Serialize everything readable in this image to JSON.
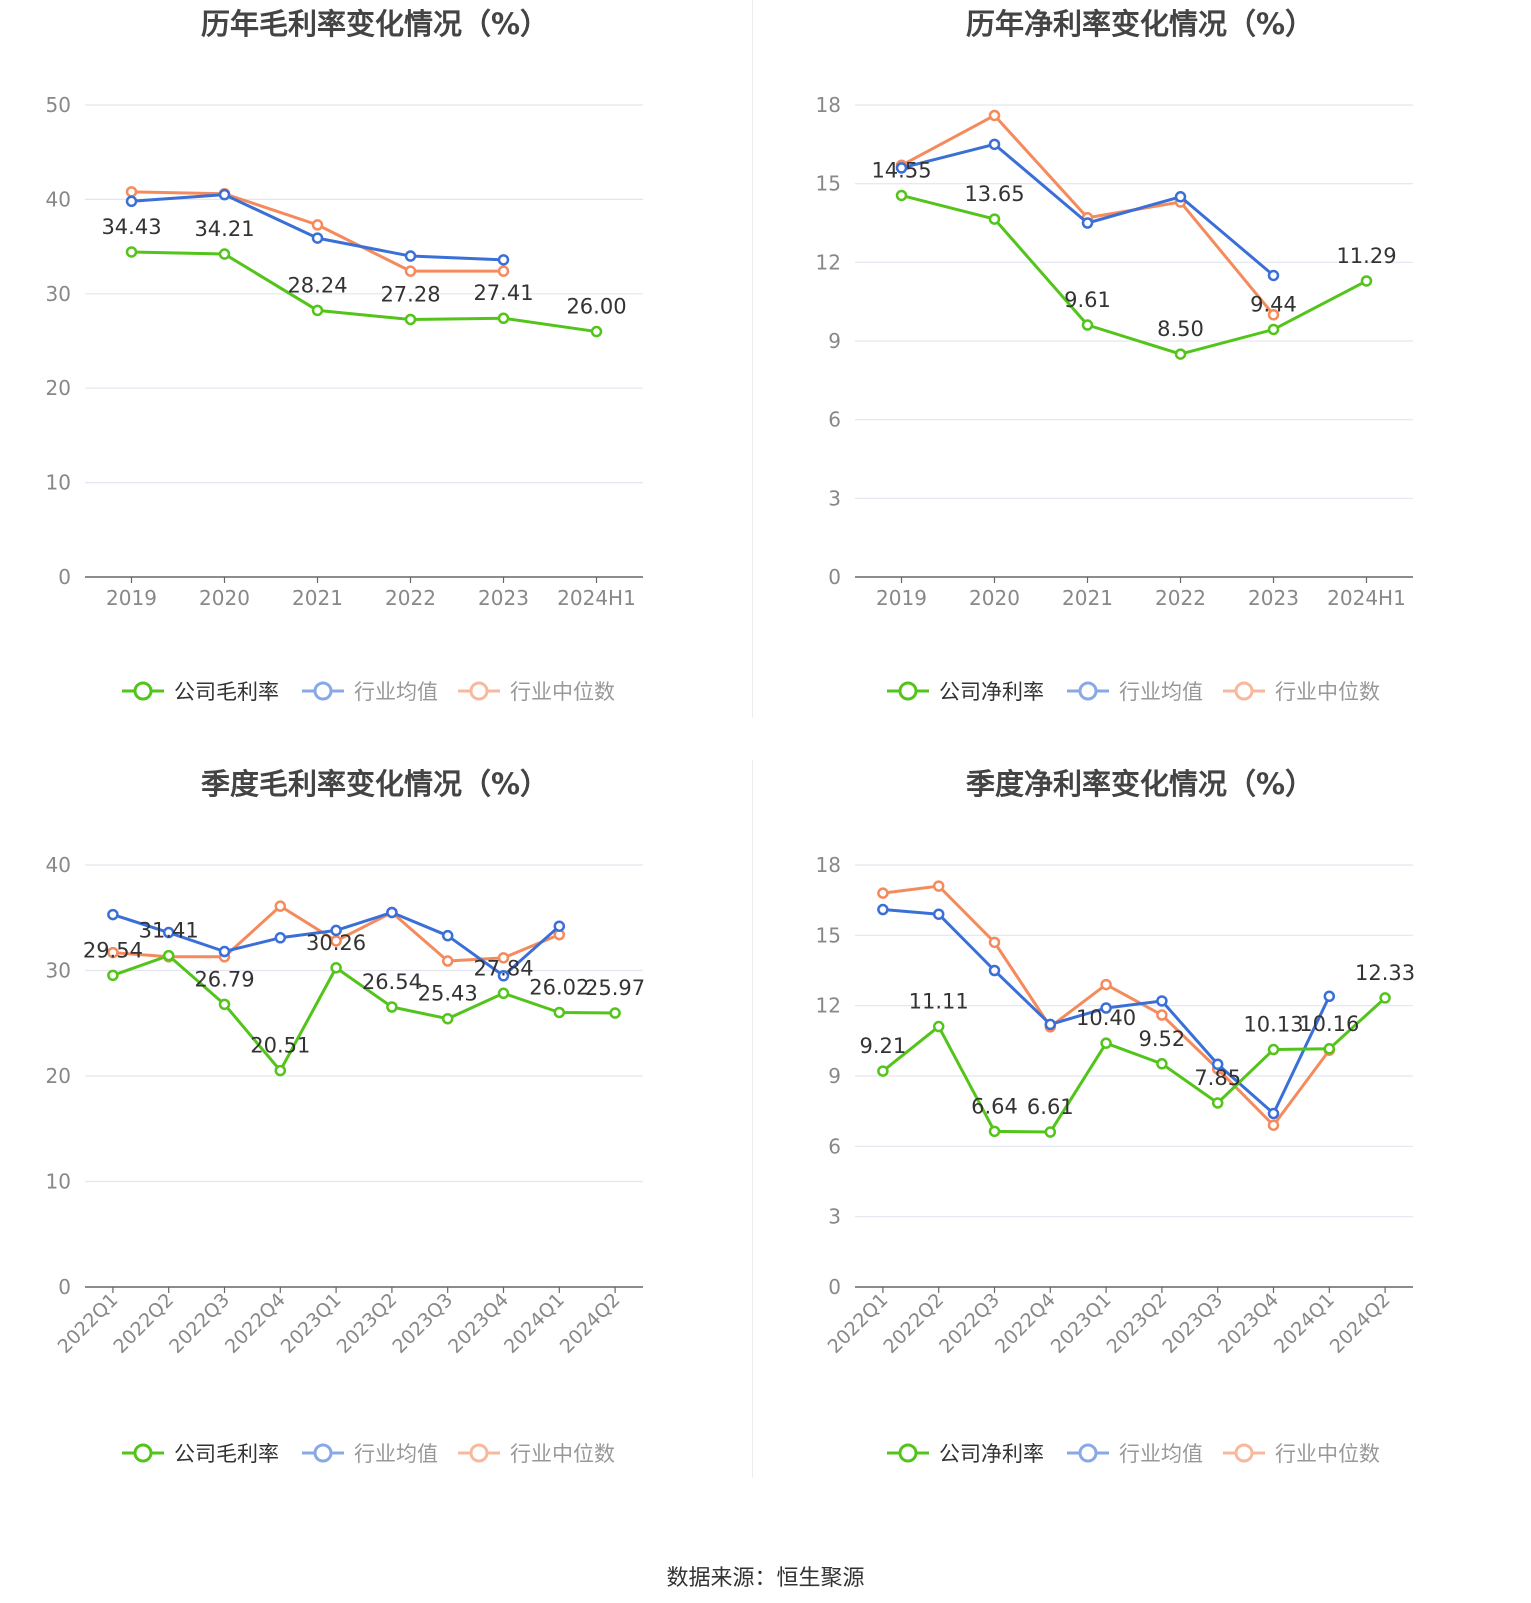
{
  "colors": {
    "company": "#52c41a",
    "avg": "#3a6fd8",
    "median": "#f58a5c",
    "grid": "#e3e6f0",
    "axis": "#666666",
    "tick": "#888888",
    "title": "#444444"
  },
  "source": "数据来源：恒生聚源",
  "chart_data": [
    {
      "type": "line",
      "title": "历年毛利率变化情况（%）",
      "categories": [
        "2019",
        "2020",
        "2021",
        "2022",
        "2023",
        "2024H1"
      ],
      "ylim": [
        0,
        50
      ],
      "yticks": [
        "0",
        "10",
        "20",
        "30",
        "40",
        "50"
      ],
      "rotate_x": false,
      "legend": [
        "公司毛利率",
        "行业均值",
        "行业中位数"
      ],
      "legend_position": "bottom",
      "series": [
        {
          "name": "公司毛利率",
          "role": "company",
          "values": [
            34.43,
            34.21,
            28.24,
            27.28,
            27.41,
            26.0
          ],
          "labels": [
            "34.43",
            "34.21",
            "28.24",
            "27.28",
            "27.41",
            "26.00"
          ]
        },
        {
          "name": "行业均值",
          "role": "avg",
          "values": [
            39.8,
            40.5,
            35.9,
            34.0,
            33.6,
            null
          ]
        },
        {
          "name": "行业中位数",
          "role": "median",
          "values": [
            40.8,
            40.6,
            37.3,
            32.4,
            32.4,
            null
          ]
        }
      ]
    },
    {
      "type": "line",
      "title": "历年净利率变化情况（%）",
      "categories": [
        "2019",
        "2020",
        "2021",
        "2022",
        "2023",
        "2024H1"
      ],
      "ylim": [
        0,
        18
      ],
      "yticks": [
        "0",
        "3",
        "6",
        "9",
        "12",
        "15",
        "18"
      ],
      "rotate_x": false,
      "legend": [
        "公司净利率",
        "行业均值",
        "行业中位数"
      ],
      "legend_position": "bottom",
      "series": [
        {
          "name": "公司净利率",
          "role": "company",
          "values": [
            14.55,
            13.65,
            9.61,
            8.5,
            9.44,
            11.29
          ],
          "labels": [
            "14.55",
            "13.65",
            "9.61",
            "8.50",
            "9.44",
            "11.29"
          ]
        },
        {
          "name": "行业均值",
          "role": "avg",
          "values": [
            15.6,
            16.5,
            13.5,
            14.5,
            11.5,
            null
          ]
        },
        {
          "name": "行业中位数",
          "role": "median",
          "values": [
            15.7,
            17.6,
            13.7,
            14.3,
            10.0,
            null
          ]
        }
      ]
    },
    {
      "type": "line",
      "title": "季度毛利率变化情况（%）",
      "categories": [
        "2022Q1",
        "2022Q2",
        "2022Q3",
        "2022Q4",
        "2023Q1",
        "2023Q2",
        "2023Q3",
        "2023Q4",
        "2024Q1",
        "2024Q2"
      ],
      "ylim": [
        0,
        40
      ],
      "yticks": [
        "0",
        "10",
        "20",
        "30",
        "40"
      ],
      "rotate_x": true,
      "legend": [
        "公司毛利率",
        "行业均值",
        "行业中位数"
      ],
      "legend_position": "bottom",
      "series": [
        {
          "name": "公司毛利率",
          "role": "company",
          "values": [
            29.54,
            31.41,
            26.79,
            20.51,
            30.26,
            26.54,
            25.43,
            27.84,
            26.02,
            25.97
          ],
          "labels": [
            "29.54",
            "31.41",
            "26.79",
            "20.51",
            "30.26",
            "26.54",
            "25.43",
            "27.84",
            "26.02",
            "25.97"
          ]
        },
        {
          "name": "行业均值",
          "role": "avg",
          "values": [
            35.3,
            33.6,
            31.8,
            33.1,
            33.8,
            35.5,
            33.3,
            29.5,
            34.2,
            null
          ]
        },
        {
          "name": "行业中位数",
          "role": "median",
          "values": [
            31.7,
            31.3,
            31.3,
            36.1,
            32.8,
            35.5,
            30.9,
            31.2,
            33.4,
            null
          ]
        }
      ]
    },
    {
      "type": "line",
      "title": "季度净利率变化情况（%）",
      "categories": [
        "2022Q1",
        "2022Q2",
        "2022Q3",
        "2022Q4",
        "2023Q1",
        "2023Q2",
        "2023Q3",
        "2023Q4",
        "2024Q1",
        "2024Q2"
      ],
      "ylim": [
        0,
        18
      ],
      "yticks": [
        "0",
        "3",
        "6",
        "9",
        "12",
        "15",
        "18"
      ],
      "rotate_x": true,
      "legend": [
        "公司净利率",
        "行业均值",
        "行业中位数"
      ],
      "legend_position": "bottom",
      "series": [
        {
          "name": "公司净利率",
          "role": "company",
          "values": [
            9.21,
            11.11,
            6.64,
            6.61,
            10.4,
            9.52,
            7.85,
            10.13,
            10.16,
            12.33
          ],
          "labels": [
            "9.21",
            "11.11",
            "6.64",
            "6.61",
            "10.40",
            "9.52",
            "7.85",
            "10.13",
            "10.16",
            "12.33"
          ]
        },
        {
          "name": "行业均值",
          "role": "avg",
          "values": [
            16.1,
            15.9,
            13.5,
            11.2,
            11.9,
            12.2,
            9.5,
            7.4,
            12.4,
            null
          ]
        },
        {
          "name": "行业中位数",
          "role": "median",
          "values": [
            16.8,
            17.1,
            14.7,
            11.1,
            12.9,
            11.6,
            9.3,
            6.9,
            10.1,
            null
          ]
        }
      ]
    }
  ]
}
